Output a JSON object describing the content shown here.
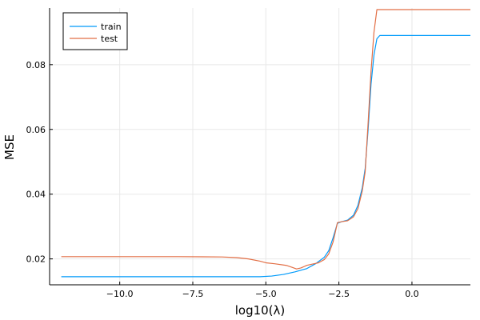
{
  "chart_data": {
    "type": "line",
    "title": "",
    "xlabel": "log10(λ)",
    "ylabel": "MSE",
    "xlim": [
      -12.4,
      2.0
    ],
    "ylim": [
      0.012,
      0.0975
    ],
    "x_ticks": [
      -10.0,
      -7.5,
      -5.0,
      -2.5,
      0.0
    ],
    "x_tick_labels": [
      "−10.0",
      "−7.5",
      "−5.0",
      "−2.5",
      "0.0"
    ],
    "y_ticks": [
      0.02,
      0.04,
      0.06,
      0.08
    ],
    "y_tick_labels": [
      "0.02",
      "0.04",
      "0.06",
      "0.08"
    ],
    "grid": true,
    "legend_position": "top-left",
    "series": [
      {
        "name": "train",
        "color": "#009AFA",
        "points": [
          [
            -12.0,
            0.0145
          ],
          [
            -10.0,
            0.0145
          ],
          [
            -8.0,
            0.0145
          ],
          [
            -6.0,
            0.0145
          ],
          [
            -5.2,
            0.0145
          ],
          [
            -4.8,
            0.0147
          ],
          [
            -4.4,
            0.0152
          ],
          [
            -4.0,
            0.016
          ],
          [
            -3.6,
            0.017
          ],
          [
            -3.3,
            0.0185
          ],
          [
            -3.0,
            0.0205
          ],
          [
            -2.85,
            0.0225
          ],
          [
            -2.7,
            0.0265
          ],
          [
            -2.55,
            0.031
          ],
          [
            -2.4,
            0.0315
          ],
          [
            -2.2,
            0.032
          ],
          [
            -2.0,
            0.0335
          ],
          [
            -1.85,
            0.0365
          ],
          [
            -1.7,
            0.042
          ],
          [
            -1.6,
            0.048
          ],
          [
            -1.5,
            0.06
          ],
          [
            -1.4,
            0.074
          ],
          [
            -1.3,
            0.083
          ],
          [
            -1.2,
            0.088
          ],
          [
            -1.1,
            0.089
          ],
          [
            -0.5,
            0.089
          ],
          [
            0.5,
            0.089
          ],
          [
            2.0,
            0.089
          ]
        ]
      },
      {
        "name": "test",
        "color": "#E26F46",
        "points": [
          [
            -12.0,
            0.0207
          ],
          [
            -10.0,
            0.0207
          ],
          [
            -8.0,
            0.0207
          ],
          [
            -6.5,
            0.0206
          ],
          [
            -6.0,
            0.0204
          ],
          [
            -5.6,
            0.02
          ],
          [
            -5.2,
            0.0193
          ],
          [
            -5.0,
            0.0188
          ],
          [
            -4.7,
            0.0185
          ],
          [
            -4.3,
            0.018
          ],
          [
            -4.1,
            0.0174
          ],
          [
            -3.95,
            0.0169
          ],
          [
            -3.8,
            0.0172
          ],
          [
            -3.6,
            0.018
          ],
          [
            -3.4,
            0.0184
          ],
          [
            -3.2,
            0.0188
          ],
          [
            -3.0,
            0.0198
          ],
          [
            -2.85,
            0.0215
          ],
          [
            -2.7,
            0.0252
          ],
          [
            -2.55,
            0.0312
          ],
          [
            -2.4,
            0.0315
          ],
          [
            -2.2,
            0.0318
          ],
          [
            -2.0,
            0.033
          ],
          [
            -1.85,
            0.0355
          ],
          [
            -1.7,
            0.041
          ],
          [
            -1.6,
            0.047
          ],
          [
            -1.5,
            0.062
          ],
          [
            -1.4,
            0.078
          ],
          [
            -1.3,
            0.09
          ],
          [
            -1.2,
            0.097
          ],
          [
            -0.5,
            0.097
          ],
          [
            0.5,
            0.097
          ],
          [
            2.0,
            0.097
          ]
        ]
      }
    ]
  }
}
